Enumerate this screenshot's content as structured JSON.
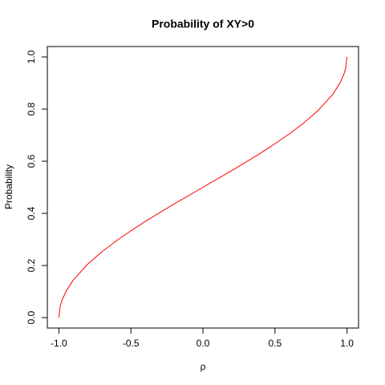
{
  "chart_data": {
    "type": "line",
    "title": "Probability of XY>0",
    "x_label": "ρ",
    "y_label": "Probability",
    "x": [
      -1,
      -0.99,
      -0.98,
      -0.95,
      -0.9,
      -0.8,
      -0.7,
      -0.6,
      -0.5,
      -0.4,
      -0.3,
      -0.2,
      -0.1,
      0,
      0.1,
      0.2,
      0.3,
      0.4,
      0.5,
      0.6,
      0.7,
      0.8,
      0.9,
      0.95,
      0.98,
      0.99,
      1
    ],
    "series": [
      {
        "color": "#ff0000",
        "values": [
          0,
          0.045,
          0.064,
          0.101,
          0.144,
          0.205,
          0.253,
          0.295,
          0.333,
          0.369,
          0.403,
          0.436,
          0.468,
          0.5,
          0.532,
          0.564,
          0.597,
          0.631,
          0.667,
          0.705,
          0.747,
          0.795,
          0.856,
          0.899,
          0.936,
          0.955,
          1
        ]
      }
    ],
    "xlim": [
      -1.08,
      1.08
    ],
    "ylim": [
      -0.04,
      1.04
    ],
    "xticks": [
      {
        "value": -1,
        "label": "-1.0"
      },
      -0.5,
      {
        "value": 0,
        "label": "0.0"
      },
      0.5,
      {
        "value": 1,
        "label": "1.0"
      }
    ],
    "yticks": [
      {
        "value": 0,
        "label": "0.0"
      },
      0.2,
      0.4,
      0.6,
      0.8,
      {
        "value": 1,
        "label": "1.0"
      }
    ]
  }
}
